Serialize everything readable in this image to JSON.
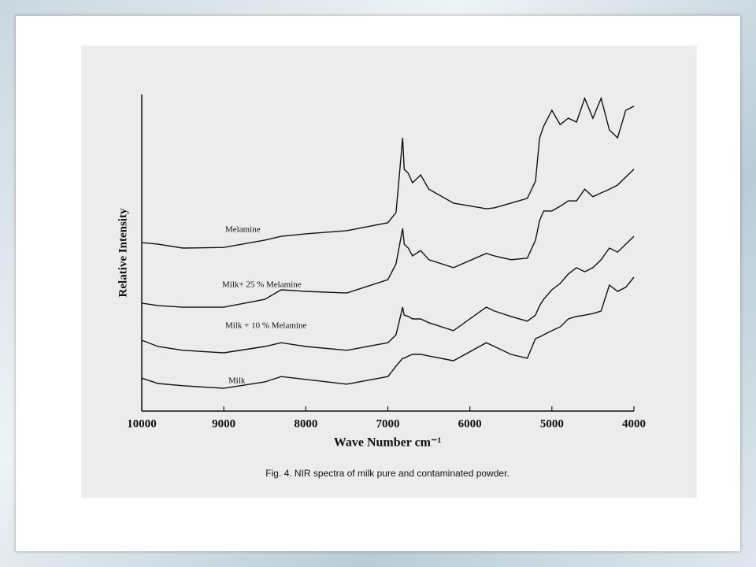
{
  "chart_data": {
    "type": "line",
    "caption": "Fig. 4. NIR spectra of milk pure and contaminated powder.",
    "x_label": "Wave Number cm⁻¹",
    "y_label": "Relative Intensity",
    "x": [
      10000,
      9800,
      9500,
      9000,
      8500,
      8300,
      8000,
      7500,
      7000,
      6900,
      6820,
      6800,
      6750,
      6700,
      6600,
      6500,
      6200,
      5800,
      5700,
      5500,
      5300,
      5200,
      5150,
      5100,
      5000,
      4900,
      4800,
      4700,
      4600,
      4500,
      4400,
      4300,
      4200,
      4100,
      4000
    ],
    "series": [
      {
        "name": "Melamine",
        "color": "#111111",
        "values": [
          53.2,
          52.7,
          51.5,
          51.7,
          54.0,
          55.2,
          56.0,
          57.0,
          59.5,
          62.7,
          86.3,
          76.4,
          75.1,
          72.1,
          74.6,
          70.1,
          65.7,
          63.9,
          64.2,
          65.7,
          67.2,
          72.6,
          86.3,
          90.0,
          95.0,
          90.5,
          92.5,
          91.3,
          98.8,
          92.5,
          98.8,
          88.8,
          86.3,
          95.0,
          96.3
        ]
      },
      {
        "name": "Milk+ 25 % Melamine",
        "color": "#111111",
        "values": [
          34.1,
          33.3,
          32.8,
          32.8,
          35.3,
          38.3,
          37.8,
          37.3,
          41.5,
          46.5,
          57.7,
          52.7,
          51.5,
          49.0,
          50.7,
          47.8,
          45.3,
          49.8,
          49.0,
          47.8,
          48.3,
          54.0,
          60.2,
          63.2,
          63.2,
          64.7,
          66.4,
          66.4,
          70.1,
          67.7,
          68.9,
          70.1,
          71.4,
          73.9,
          76.4
        ]
      },
      {
        "name": "Milk + 10 % Melamine",
        "color": "#111111",
        "values": [
          22.4,
          20.4,
          19.2,
          18.4,
          20.4,
          21.6,
          20.4,
          19.2,
          21.6,
          24.1,
          32.8,
          30.3,
          29.9,
          29.1,
          29.1,
          27.9,
          25.4,
          32.8,
          31.6,
          29.9,
          28.4,
          30.3,
          33.3,
          35.3,
          38.3,
          40.3,
          43.3,
          45.3,
          44.0,
          45.3,
          47.8,
          51.5,
          50.2,
          52.7,
          55.2
        ]
      },
      {
        "name": "Milk",
        "color": "#111111",
        "values": [
          10.4,
          8.7,
          8.0,
          7.2,
          9.2,
          10.9,
          10.0,
          8.5,
          10.9,
          14.2,
          16.7,
          16.7,
          17.4,
          17.9,
          17.9,
          17.4,
          15.9,
          21.6,
          20.4,
          17.9,
          16.7,
          22.9,
          23.4,
          24.1,
          25.4,
          26.6,
          29.1,
          29.9,
          30.3,
          30.8,
          31.6,
          39.8,
          37.8,
          39.1,
          42.3
        ]
      }
    ],
    "xlim": [
      10000,
      4000
    ],
    "xticks": [
      10000,
      9000,
      8000,
      7000,
      6000,
      5000,
      4000
    ],
    "ylim": [
      0,
      100
    ]
  }
}
